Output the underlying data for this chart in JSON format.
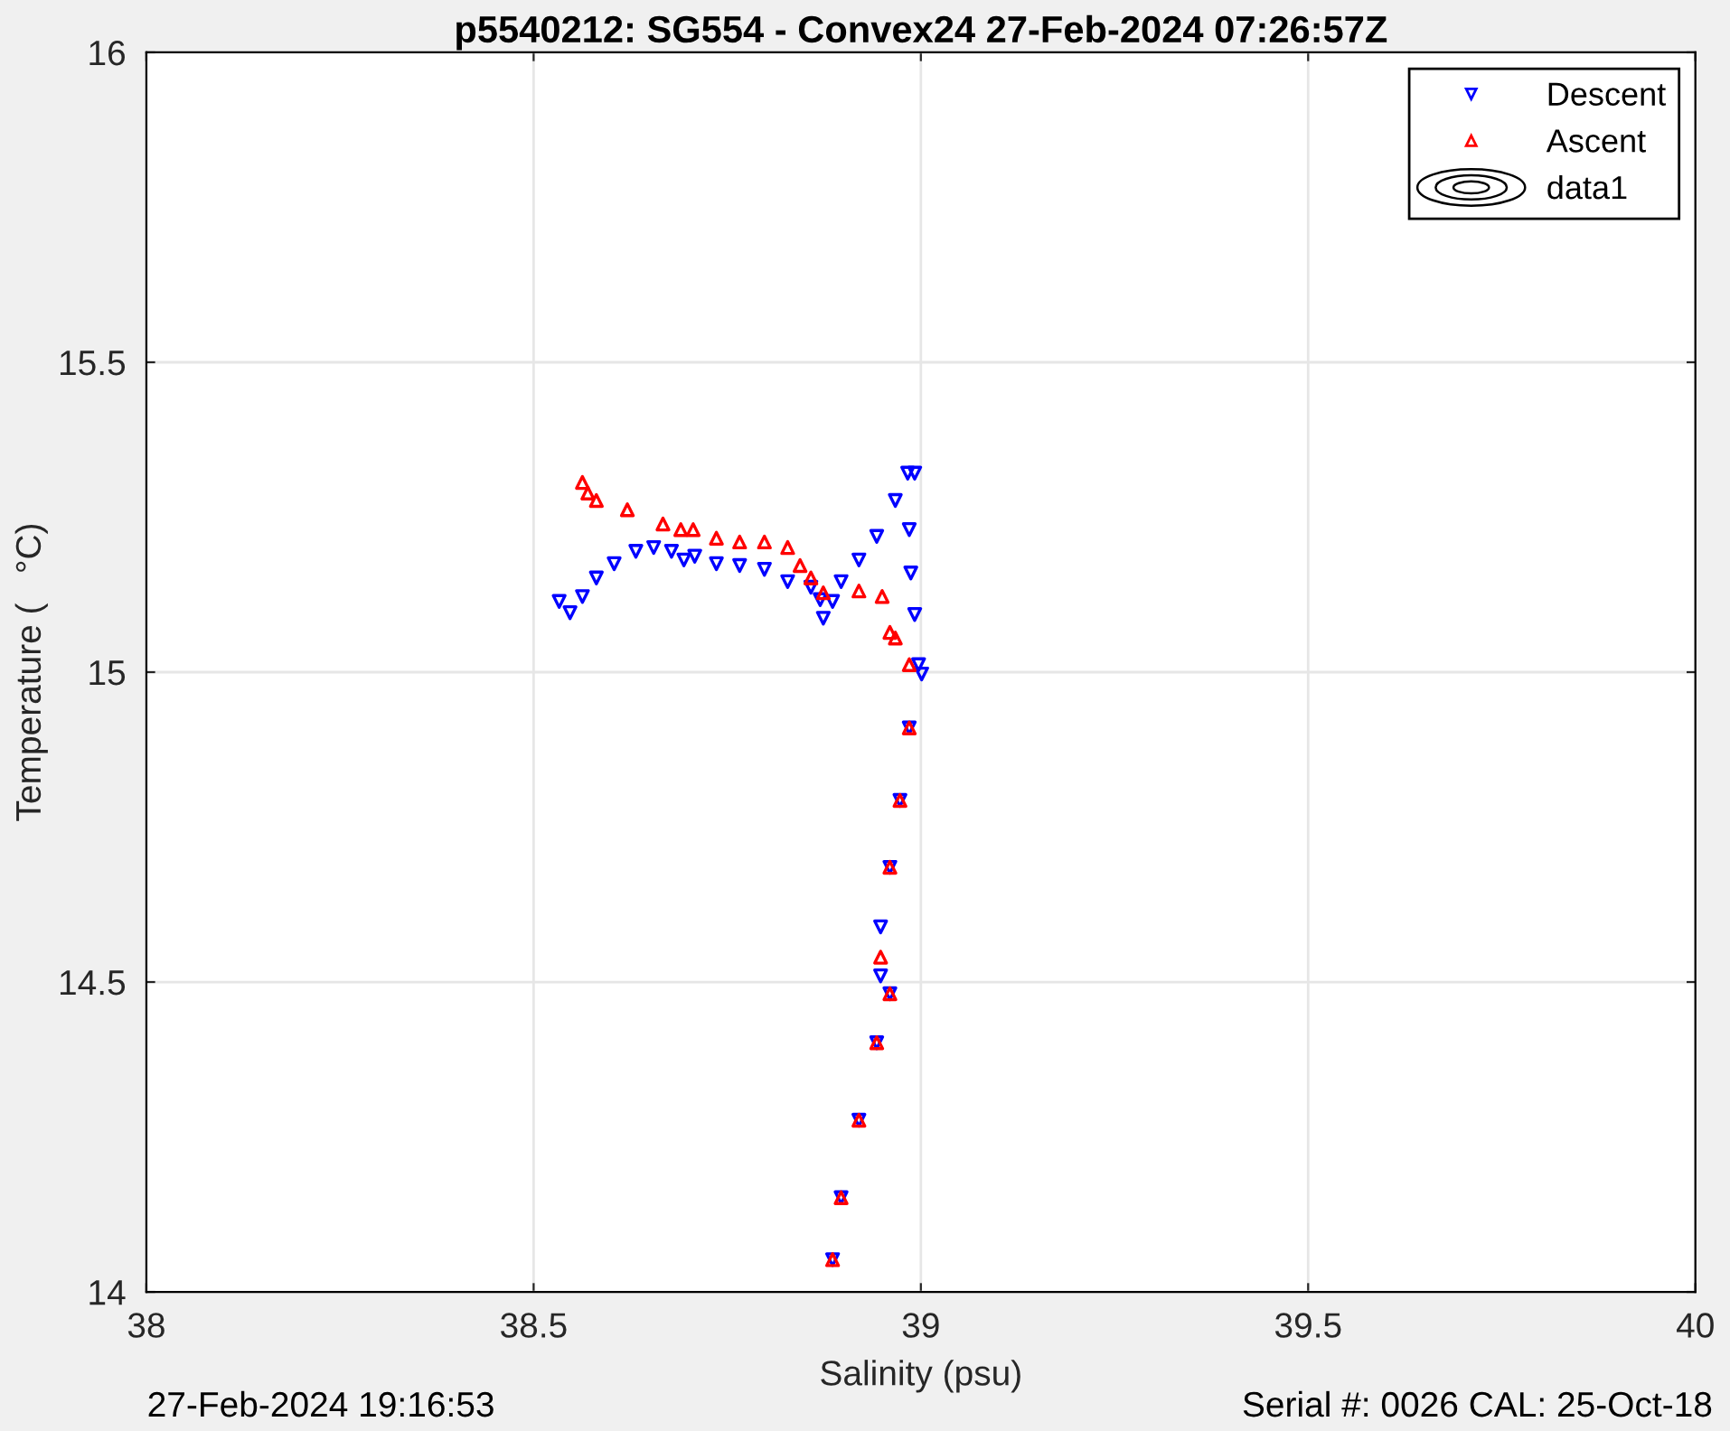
{
  "chart_data": {
    "type": "scatter",
    "title": "p5540212: SG554 - Convex24 27-Feb-2024 07:26:57Z",
    "xlabel": "Salinity (psu)",
    "ylabel": "Temperature (   °C)",
    "xlim": [
      38,
      40
    ],
    "xticks": [
      38,
      38.5,
      39,
      39.5,
      40
    ],
    "ylim": [
      14,
      16
    ],
    "yticks": [
      14,
      14.5,
      15,
      15.5,
      16
    ],
    "grid": true,
    "legend": "top right",
    "annotations": [
      "27-Feb-2024 19:16:53",
      "Serial #: 0026 CAL: 25-Oct-18"
    ],
    "series": [
      {
        "name": "Descent",
        "color": "#0000ff",
        "marker": "triangle_down",
        "x": [
          38.533,
          38.547,
          38.563,
          38.581,
          38.604,
          38.632,
          38.655,
          38.678,
          38.694,
          38.708,
          38.736,
          38.766,
          38.798,
          38.828,
          38.858,
          38.87,
          38.874,
          38.886,
          38.897,
          38.92,
          38.943,
          38.967,
          38.983,
          38.992,
          38.985,
          38.987,
          38.992,
          38.997,
          39.001,
          38.985,
          38.973,
          38.96,
          38.948,
          38.948,
          38.96,
          38.943,
          38.92,
          38.897,
          38.886
        ],
        "values": [
          15.114,
          15.096,
          15.122,
          15.152,
          15.175,
          15.195,
          15.201,
          15.195,
          15.181,
          15.187,
          15.175,
          15.172,
          15.166,
          15.146,
          15.137,
          15.117,
          15.087,
          15.114,
          15.146,
          15.181,
          15.219,
          15.277,
          15.321,
          15.321,
          15.23,
          15.16,
          15.093,
          15.012,
          14.997,
          14.91,
          14.793,
          14.685,
          14.589,
          14.51,
          14.481,
          14.402,
          14.277,
          14.152,
          14.052
        ]
      },
      {
        "name": "Ascent",
        "color": "#ff0000",
        "marker": "triangle",
        "x": [
          38.886,
          38.897,
          38.92,
          38.943,
          38.96,
          38.948,
          38.96,
          38.973,
          38.985,
          38.985,
          38.967,
          38.96,
          38.95,
          38.92,
          38.874,
          38.858,
          38.844,
          38.828,
          38.798,
          38.766,
          38.736,
          38.706,
          38.69,
          38.667,
          38.621,
          38.581,
          38.57,
          38.563
        ],
        "values": [
          14.052,
          14.152,
          14.277,
          14.402,
          14.481,
          14.54,
          14.685,
          14.793,
          14.91,
          15.012,
          15.055,
          15.064,
          15.122,
          15.131,
          15.128,
          15.152,
          15.172,
          15.201,
          15.21,
          15.21,
          15.216,
          15.23,
          15.23,
          15.239,
          15.262,
          15.277,
          15.289,
          15.306
        ]
      },
      {
        "name": "data1",
        "type": "other",
        "color": "#000000"
      }
    ]
  }
}
